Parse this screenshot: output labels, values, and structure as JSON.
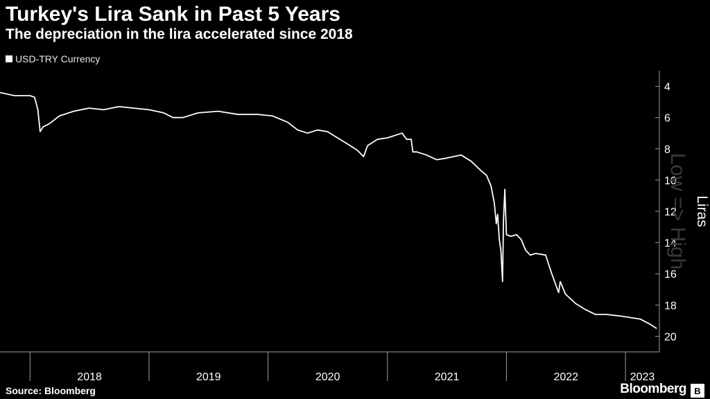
{
  "chart_data": {
    "type": "line",
    "title": "Turkey's Lira Sank in Past 5 Years",
    "subtitle": "The depreciation in the lira accelerated since 2018",
    "ylabel": "Liras",
    "y_axis_note": "Low => High",
    "y_inverted": true,
    "ylim": [
      3,
      21
    ],
    "yticks": [
      4,
      6,
      8,
      10,
      12,
      14,
      16,
      18,
      20
    ],
    "xlim": [
      "2017-10-01",
      "2023-04-15"
    ],
    "x_period_labels": [
      "2018",
      "2019",
      "2020",
      "2021",
      "2022",
      "2023"
    ],
    "legend_position": "top-left",
    "grid": false,
    "series": [
      {
        "name": "USD-TRY Currency",
        "color": "#ffffff",
        "points": [
          [
            "2017-10-01",
            4.4
          ],
          [
            "2017-11-15",
            4.6
          ],
          [
            "2018-01-01",
            4.6
          ],
          [
            "2018-01-15",
            4.7
          ],
          [
            "2018-01-25",
            5.5
          ],
          [
            "2018-02-01",
            6.9
          ],
          [
            "2018-02-10",
            6.6
          ],
          [
            "2018-03-01",
            6.4
          ],
          [
            "2018-04-01",
            5.9
          ],
          [
            "2018-05-15",
            5.6
          ],
          [
            "2018-07-01",
            5.4
          ],
          [
            "2018-08-15",
            5.5
          ],
          [
            "2018-10-01",
            5.3
          ],
          [
            "2018-11-15",
            5.4
          ],
          [
            "2019-01-01",
            5.5
          ],
          [
            "2019-02-15",
            5.7
          ],
          [
            "2019-03-15",
            6.0
          ],
          [
            "2019-04-15",
            6.0
          ],
          [
            "2019-06-01",
            5.7
          ],
          [
            "2019-08-01",
            5.6
          ],
          [
            "2019-10-01",
            5.8
          ],
          [
            "2019-12-01",
            5.8
          ],
          [
            "2020-01-15",
            5.9
          ],
          [
            "2020-03-01",
            6.3
          ],
          [
            "2020-04-01",
            6.8
          ],
          [
            "2020-05-01",
            7.0
          ],
          [
            "2020-06-01",
            6.8
          ],
          [
            "2020-07-01",
            6.9
          ],
          [
            "2020-08-01",
            7.3
          ],
          [
            "2020-09-01",
            7.7
          ],
          [
            "2020-10-01",
            8.1
          ],
          [
            "2020-10-20",
            8.5
          ],
          [
            "2020-11-01",
            7.8
          ],
          [
            "2020-12-01",
            7.4
          ],
          [
            "2021-01-01",
            7.3
          ],
          [
            "2021-02-15",
            7.0
          ],
          [
            "2021-03-01",
            7.4
          ],
          [
            "2021-03-15",
            7.4
          ],
          [
            "2021-03-20",
            8.2
          ],
          [
            "2021-04-01",
            8.2
          ],
          [
            "2021-05-01",
            8.4
          ],
          [
            "2021-06-01",
            8.7
          ],
          [
            "2021-07-01",
            8.6
          ],
          [
            "2021-08-15",
            8.4
          ],
          [
            "2021-09-15",
            8.8
          ],
          [
            "2021-10-15",
            9.4
          ],
          [
            "2021-11-01",
            9.7
          ],
          [
            "2021-11-15",
            10.4
          ],
          [
            "2021-11-25",
            11.5
          ],
          [
            "2021-12-01",
            12.8
          ],
          [
            "2021-12-05",
            12.2
          ],
          [
            "2021-12-10",
            13.8
          ],
          [
            "2021-12-15",
            14.5
          ],
          [
            "2021-12-20",
            16.5
          ],
          [
            "2021-12-23",
            12.5
          ],
          [
            "2021-12-27",
            10.6
          ],
          [
            "2022-01-01",
            13.5
          ],
          [
            "2022-01-15",
            13.6
          ],
          [
            "2022-02-01",
            13.5
          ],
          [
            "2022-02-15",
            13.8
          ],
          [
            "2022-03-01",
            14.5
          ],
          [
            "2022-03-15",
            14.8
          ],
          [
            "2022-04-01",
            14.7
          ],
          [
            "2022-05-01",
            14.8
          ],
          [
            "2022-05-20",
            16.0
          ],
          [
            "2022-06-10",
            17.2
          ],
          [
            "2022-06-15",
            16.5
          ],
          [
            "2022-07-01",
            17.3
          ],
          [
            "2022-08-01",
            17.9
          ],
          [
            "2022-09-01",
            18.3
          ],
          [
            "2022-10-01",
            18.6
          ],
          [
            "2022-11-01",
            18.6
          ],
          [
            "2022-12-15",
            18.7
          ],
          [
            "2023-01-15",
            18.8
          ],
          [
            "2023-02-15",
            18.9
          ],
          [
            "2023-03-15",
            19.2
          ],
          [
            "2023-04-07",
            19.5
          ]
        ]
      }
    ]
  },
  "legend": {
    "label": "USD-TRY Currency"
  },
  "footer": {
    "source": "Source: Bloomberg",
    "brand": "Bloomberg",
    "brand_icon": "B"
  },
  "colors": {
    "background": "#000000",
    "line": "#ffffff",
    "axis": "#a0a0a0",
    "watermark": "#3a3a3a"
  }
}
